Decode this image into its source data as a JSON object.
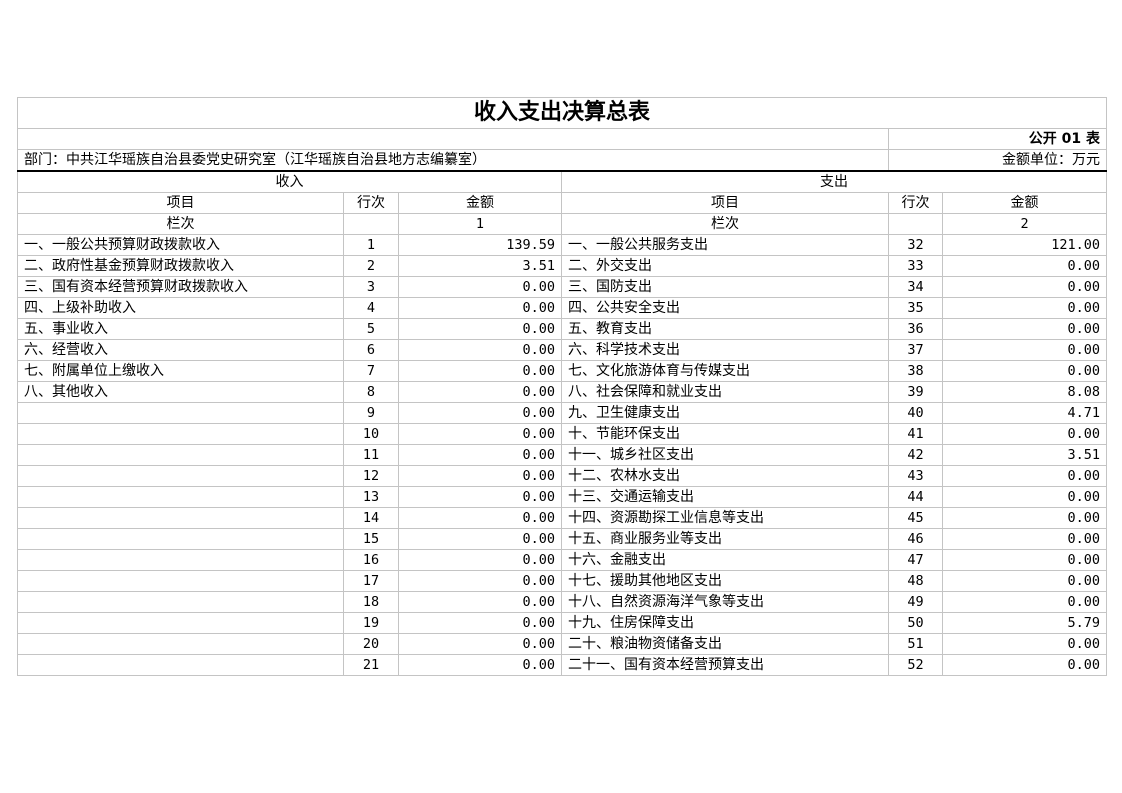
{
  "title": "收入支出决算总表",
  "form_no": "公开 01 表",
  "department": "部门：中共江华瑶族自治县委党史研究室（江华瑶族自治县地方志编纂室）",
  "unit": "金额单位：万元",
  "income_header": "收入",
  "expense_header": "支出",
  "col_item": "项目",
  "col_line": "行次",
  "col_amount": "金额",
  "col_seq": "栏次",
  "income_seq": "1",
  "expense_seq": "2",
  "rows": [
    {
      "in_item": "一、一般公共预算财政拨款收入",
      "in_line": "1",
      "in_amt": "139.59",
      "ex_item": "一、一般公共服务支出",
      "ex_line": "32",
      "ex_amt": "121.00"
    },
    {
      "in_item": "二、政府性基金预算财政拨款收入",
      "in_line": "2",
      "in_amt": "3.51",
      "ex_item": "二、外交支出",
      "ex_line": "33",
      "ex_amt": "0.00"
    },
    {
      "in_item": "三、国有资本经营预算财政拨款收入",
      "in_line": "3",
      "in_amt": "0.00",
      "ex_item": "三、国防支出",
      "ex_line": "34",
      "ex_amt": "0.00"
    },
    {
      "in_item": "四、上级补助收入",
      "in_line": "4",
      "in_amt": "0.00",
      "ex_item": "四、公共安全支出",
      "ex_line": "35",
      "ex_amt": "0.00"
    },
    {
      "in_item": "五、事业收入",
      "in_line": "5",
      "in_amt": "0.00",
      "ex_item": "五、教育支出",
      "ex_line": "36",
      "ex_amt": "0.00"
    },
    {
      "in_item": "六、经营收入",
      "in_line": "6",
      "in_amt": "0.00",
      "ex_item": "六、科学技术支出",
      "ex_line": "37",
      "ex_amt": "0.00"
    },
    {
      "in_item": "七、附属单位上缴收入",
      "in_line": "7",
      "in_amt": "0.00",
      "ex_item": "七、文化旅游体育与传媒支出",
      "ex_line": "38",
      "ex_amt": "0.00"
    },
    {
      "in_item": "八、其他收入",
      "in_line": "8",
      "in_amt": "0.00",
      "ex_item": "八、社会保障和就业支出",
      "ex_line": "39",
      "ex_amt": "8.08"
    },
    {
      "in_item": "",
      "in_line": "9",
      "in_amt": "0.00",
      "ex_item": "九、卫生健康支出",
      "ex_line": "40",
      "ex_amt": "4.71"
    },
    {
      "in_item": "",
      "in_line": "10",
      "in_amt": "0.00",
      "ex_item": "十、节能环保支出",
      "ex_line": "41",
      "ex_amt": "0.00"
    },
    {
      "in_item": "",
      "in_line": "11",
      "in_amt": "0.00",
      "ex_item": "十一、城乡社区支出",
      "ex_line": "42",
      "ex_amt": "3.51"
    },
    {
      "in_item": "",
      "in_line": "12",
      "in_amt": "0.00",
      "ex_item": "十二、农林水支出",
      "ex_line": "43",
      "ex_amt": "0.00"
    },
    {
      "in_item": "",
      "in_line": "13",
      "in_amt": "0.00",
      "ex_item": "十三、交通运输支出",
      "ex_line": "44",
      "ex_amt": "0.00"
    },
    {
      "in_item": "",
      "in_line": "14",
      "in_amt": "0.00",
      "ex_item": "十四、资源勘探工业信息等支出",
      "ex_line": "45",
      "ex_amt": "0.00"
    },
    {
      "in_item": "",
      "in_line": "15",
      "in_amt": "0.00",
      "ex_item": "十五、商业服务业等支出",
      "ex_line": "46",
      "ex_amt": "0.00"
    },
    {
      "in_item": "",
      "in_line": "16",
      "in_amt": "0.00",
      "ex_item": "十六、金融支出",
      "ex_line": "47",
      "ex_amt": "0.00"
    },
    {
      "in_item": "",
      "in_line": "17",
      "in_amt": "0.00",
      "ex_item": "十七、援助其他地区支出",
      "ex_line": "48",
      "ex_amt": "0.00"
    },
    {
      "in_item": "",
      "in_line": "18",
      "in_amt": "0.00",
      "ex_item": "十八、自然资源海洋气象等支出",
      "ex_line": "49",
      "ex_amt": "0.00"
    },
    {
      "in_item": "",
      "in_line": "19",
      "in_amt": "0.00",
      "ex_item": "十九、住房保障支出",
      "ex_line": "50",
      "ex_amt": "5.79"
    },
    {
      "in_item": "",
      "in_line": "20",
      "in_amt": "0.00",
      "ex_item": "二十、粮油物资储备支出",
      "ex_line": "51",
      "ex_amt": "0.00"
    },
    {
      "in_item": "",
      "in_line": "21",
      "in_amt": "0.00",
      "ex_item": "二十一、国有资本经营预算支出",
      "ex_line": "52",
      "ex_amt": "0.00"
    }
  ]
}
